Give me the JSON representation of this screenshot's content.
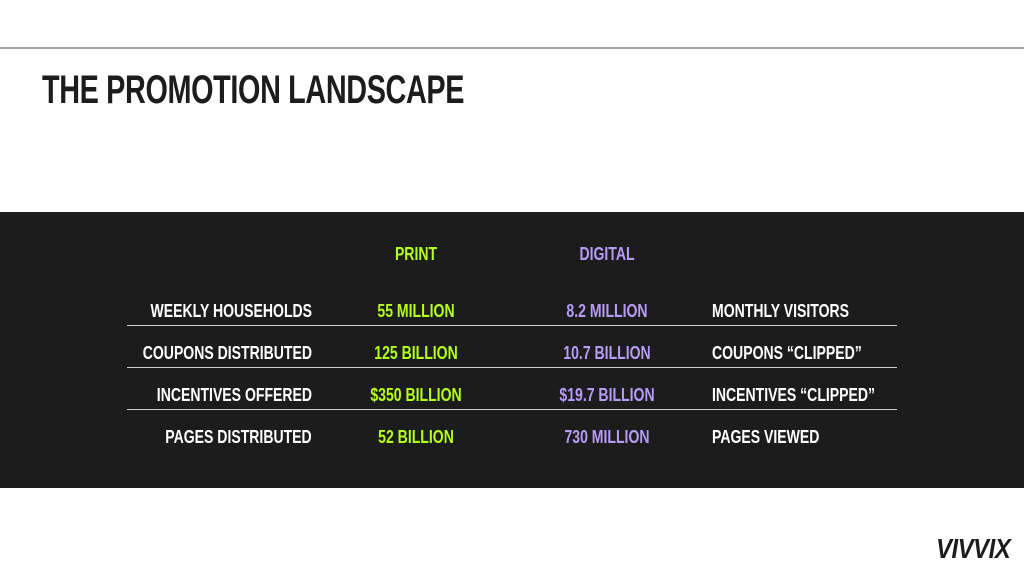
{
  "title": "THE PROMOTION LANDSCAPE",
  "colors": {
    "print": "#b4ff1c",
    "digital": "#b69cf7",
    "band": "#1c1c1c"
  },
  "table": {
    "headers": {
      "print": "PRINT",
      "digital": "DIGITAL"
    },
    "rows": [
      {
        "left_label": "WEEKLY HOUSEHOLDS",
        "print": "55 MILLION",
        "digital": "8.2 MILLION",
        "right_label": "MONTHLY VISITORS"
      },
      {
        "left_label": "COUPONS DISTRIBUTED",
        "print": "125 BILLION",
        "digital": "10.7 BILLION",
        "right_label": "COUPONS “CLIPPED”"
      },
      {
        "left_label": "INCENTIVES OFFERED",
        "print": "$350 BILLION",
        "digital": "$19.7 BILLION",
        "right_label": "INCENTIVES “CLIPPED”"
      },
      {
        "left_label": "PAGES DISTRIBUTED",
        "print": "52 BILLION",
        "digital": "730 MILLION",
        "right_label": "PAGES VIEWED"
      }
    ]
  },
  "logo": "VIVVIX"
}
